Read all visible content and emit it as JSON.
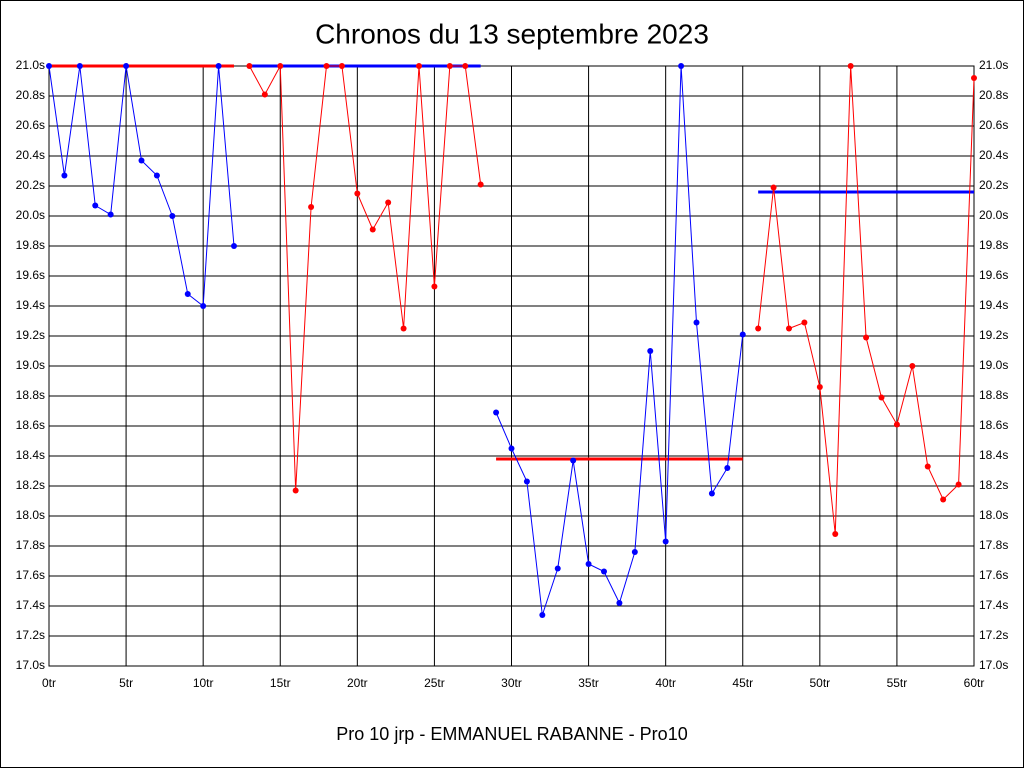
{
  "chart_data": {
    "type": "line",
    "title": "Chronos du 13 septembre 2023",
    "x_label": "Pro 10 jrp - EMMANUEL RABANNE - Pro10",
    "x": [
      0,
      1,
      2,
      3,
      4,
      5,
      6,
      7,
      8,
      9,
      10,
      11,
      12,
      13,
      14,
      15,
      16,
      17,
      18,
      19,
      20,
      21,
      22,
      23,
      24,
      25,
      26,
      27,
      28,
      29,
      30,
      31,
      32,
      33,
      34,
      35,
      36,
      37,
      38,
      39,
      40,
      41,
      42,
      43,
      44,
      45,
      46,
      47,
      48,
      49,
      50,
      51,
      52,
      53,
      54,
      55,
      56,
      57,
      58,
      59,
      60
    ],
    "series": [
      {
        "color": "#0000ff",
        "values": [
          21.0,
          20.27,
          21.0,
          20.07,
          20.01,
          21.0,
          20.37,
          20.27,
          20.0,
          19.48,
          19.4,
          21.0,
          19.8,
          null,
          null,
          null,
          null,
          null,
          null,
          null,
          null,
          null,
          null,
          null,
          null,
          null,
          null,
          null,
          null,
          18.69,
          18.45,
          18.23,
          17.34,
          17.65,
          18.37,
          17.68,
          17.63,
          17.42,
          17.76,
          19.1,
          17.83,
          21.0,
          19.29,
          18.15,
          18.32,
          19.21,
          null,
          null,
          null,
          null,
          null,
          null,
          null,
          null,
          null,
          null,
          null,
          null,
          null,
          null,
          null
        ]
      },
      {
        "color": "#ff0000",
        "values": [
          null,
          null,
          null,
          null,
          null,
          null,
          null,
          null,
          null,
          null,
          null,
          null,
          null,
          21.0,
          20.81,
          21.0,
          18.17,
          20.06,
          21.0,
          21.0,
          20.15,
          19.91,
          20.09,
          19.25,
          21.0,
          19.53,
          21.0,
          21.0,
          20.21,
          null,
          null,
          null,
          null,
          null,
          null,
          null,
          null,
          null,
          null,
          null,
          null,
          null,
          null,
          null,
          null,
          null,
          19.25,
          20.19,
          19.25,
          19.29,
          18.86,
          17.88,
          21.0,
          19.19,
          18.79,
          18.61,
          19.0,
          18.33,
          18.11,
          18.21,
          20.92
        ]
      }
    ],
    "reference_lines": [
      {
        "color": "#ff0000",
        "value": 21.0,
        "x": [
          0,
          12
        ]
      },
      {
        "color": "#0000ff",
        "value": 21.0,
        "x": [
          13,
          28
        ]
      },
      {
        "color": "#ff0000",
        "value": 18.38,
        "x": [
          29,
          45
        ]
      },
      {
        "color": "#0000ff",
        "value": 20.16,
        "x": [
          46,
          60
        ]
      }
    ],
    "xlim": [
      0,
      60
    ],
    "xticks": [
      {
        "value": 0,
        "label": "0tr"
      },
      {
        "value": 5,
        "label": "5tr"
      },
      {
        "value": 10,
        "label": "10tr"
      },
      {
        "value": 15,
        "label": "15tr"
      },
      {
        "value": 20,
        "label": "20tr"
      },
      {
        "value": 25,
        "label": "25tr"
      },
      {
        "value": 30,
        "label": "30tr"
      },
      {
        "value": 35,
        "label": "35tr"
      },
      {
        "value": 40,
        "label": "40tr"
      },
      {
        "value": 45,
        "label": "45tr"
      },
      {
        "value": 50,
        "label": "50tr"
      },
      {
        "value": 55,
        "label": "55tr"
      },
      {
        "value": 60,
        "label": "60tr"
      }
    ],
    "ylim": [
      17.0,
      21.0
    ],
    "yticks": [
      {
        "value": 17.0,
        "label": "17.0s"
      },
      {
        "value": 17.2,
        "label": "17.2s"
      },
      {
        "value": 17.4,
        "label": "17.4s"
      },
      {
        "value": 17.6,
        "label": "17.6s"
      },
      {
        "value": 17.8,
        "label": "17.8s"
      },
      {
        "value": 18.0,
        "label": "18.0s"
      },
      {
        "value": 18.2,
        "label": "18.2s"
      },
      {
        "value": 18.4,
        "label": "18.4s"
      },
      {
        "value": 18.6,
        "label": "18.6s"
      },
      {
        "value": 18.8,
        "label": "18.8s"
      },
      {
        "value": 19.0,
        "label": "19.0s"
      },
      {
        "value": 19.2,
        "label": "19.2s"
      },
      {
        "value": 19.4,
        "label": "19.4s"
      },
      {
        "value": 19.6,
        "label": "19.6s"
      },
      {
        "value": 19.8,
        "label": "19.8s"
      },
      {
        "value": 20.0,
        "label": "20.0s"
      },
      {
        "value": 20.2,
        "label": "20.2s"
      },
      {
        "value": 20.4,
        "label": "20.4s"
      },
      {
        "value": 20.6,
        "label": "20.6s"
      },
      {
        "value": 20.8,
        "label": "20.8s"
      },
      {
        "value": 21.0,
        "label": "21.0s"
      }
    ],
    "grid": true
  }
}
